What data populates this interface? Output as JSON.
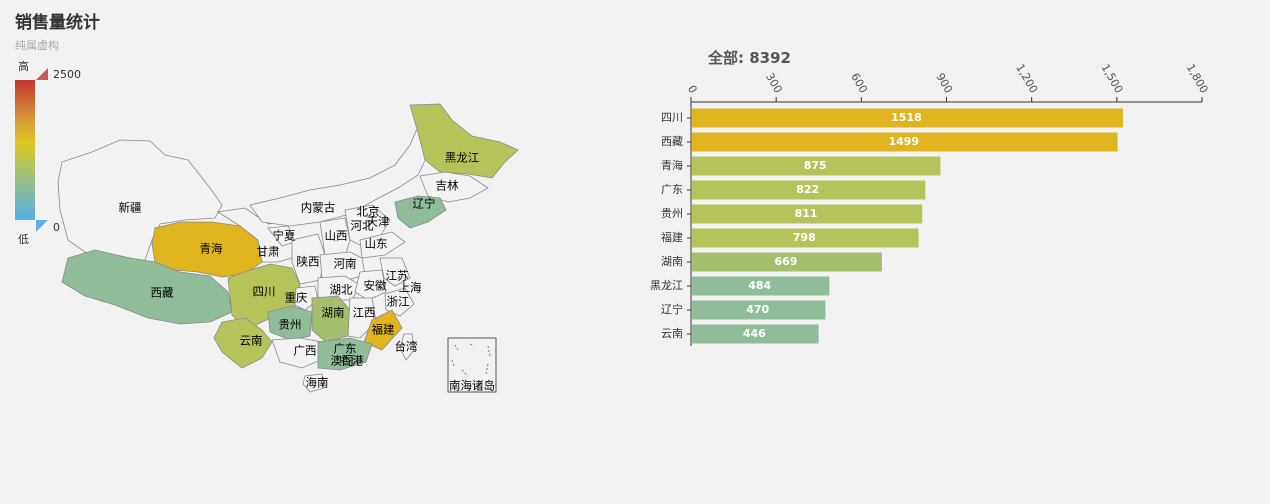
{
  "title": "销售量统计",
  "subtitle": "纯属虚构",
  "visual_map": {
    "high_label": "高",
    "low_label": "低",
    "max": "2500",
    "min": "0"
  },
  "colors": {
    "sichuan_xizang": "#e0b41e",
    "mid": "#b6c35a",
    "hunan": "#a4be6e",
    "low": "#8fbc99",
    "empty": "#f3f3f3"
  },
  "map": {
    "regions": [
      {
        "name": "新疆",
        "value": null
      },
      {
        "name": "西藏",
        "value": 1499
      },
      {
        "name": "青海",
        "value": 875
      },
      {
        "name": "甘肃",
        "value": null
      },
      {
        "name": "内蒙古",
        "value": null
      },
      {
        "name": "黑龙江",
        "value": 484
      },
      {
        "name": "吉林",
        "value": null
      },
      {
        "name": "辽宁",
        "value": 470
      },
      {
        "name": "宁夏",
        "value": null
      },
      {
        "name": "陕西",
        "value": null
      },
      {
        "name": "山西",
        "value": null
      },
      {
        "name": "河北",
        "value": null
      },
      {
        "name": "北京",
        "value": null
      },
      {
        "name": "天津",
        "value": null
      },
      {
        "name": "山东",
        "value": null
      },
      {
        "name": "河南",
        "value": null
      },
      {
        "name": "四川",
        "value": 1518
      },
      {
        "name": "重庆",
        "value": null
      },
      {
        "name": "湖北",
        "value": null
      },
      {
        "name": "安徽",
        "value": null
      },
      {
        "name": "江苏",
        "value": null
      },
      {
        "name": "上海",
        "value": null
      },
      {
        "name": "浙江",
        "value": null
      },
      {
        "name": "贵州",
        "value": 811
      },
      {
        "name": "湖南",
        "value": 669
      },
      {
        "name": "江西",
        "value": null
      },
      {
        "name": "福建",
        "value": 798
      },
      {
        "name": "云南",
        "value": 446
      },
      {
        "name": "广西",
        "value": null
      },
      {
        "name": "广东",
        "value": 822
      },
      {
        "name": "香港",
        "value": null
      },
      {
        "name": "澳门",
        "value": null
      },
      {
        "name": "台湾",
        "value": null
      },
      {
        "name": "海南",
        "value": null
      },
      {
        "name": "南海诸岛",
        "value": null
      }
    ]
  },
  "chart_data": {
    "type": "bar",
    "orientation": "horizontal",
    "title": "全部: 8392",
    "categories": [
      "四川",
      "西藏",
      "青海",
      "广东",
      "贵州",
      "福建",
      "湖南",
      "黑龙江",
      "辽宁",
      "云南"
    ],
    "values": [
      1518,
      1499,
      875,
      822,
      811,
      798,
      669,
      484,
      470,
      446
    ],
    "xlim": [
      0,
      1800
    ],
    "xticks": [
      0,
      300,
      600,
      900,
      1200,
      1500,
      1800
    ],
    "xtick_labels": [
      "0",
      "300",
      "600",
      "900",
      "1,200",
      "1,500",
      "1,800"
    ],
    "xaxis_position": "top"
  }
}
